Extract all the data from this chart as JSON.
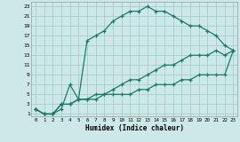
{
  "xlabel": "Humidex (Indice chaleur)",
  "background_color": "#cce8e8",
  "grid_color": "#aacccc",
  "line_color": "#1a7a6a",
  "xlim": [
    -0.5,
    23.5
  ],
  "ylim": [
    0.5,
    24
  ],
  "xticks": [
    0,
    1,
    2,
    3,
    4,
    5,
    6,
    7,
    8,
    9,
    10,
    11,
    12,
    13,
    14,
    15,
    16,
    17,
    18,
    19,
    20,
    21,
    22,
    23
  ],
  "yticks": [
    1,
    3,
    5,
    7,
    9,
    11,
    13,
    15,
    17,
    19,
    21,
    23
  ],
  "series1_x": [
    0,
    1,
    2,
    3,
    4,
    5,
    6,
    7,
    8,
    9,
    10,
    11,
    12,
    13,
    14,
    15,
    16,
    17,
    18,
    19,
    20,
    21,
    22,
    23
  ],
  "series1_y": [
    2,
    1,
    1,
    2,
    7,
    4,
    16,
    17,
    18,
    20,
    21,
    22,
    22,
    23,
    22,
    22,
    21,
    20,
    19,
    19,
    18,
    17,
    15,
    14
  ],
  "series2_x": [
    0,
    1,
    2,
    3,
    4,
    5,
    6,
    7,
    8,
    9,
    10,
    11,
    12,
    13,
    14,
    15,
    16,
    17,
    18,
    19,
    20,
    21,
    22,
    23
  ],
  "series2_y": [
    2,
    1,
    1,
    3,
    3,
    4,
    4,
    5,
    5,
    6,
    7,
    8,
    8,
    9,
    10,
    11,
    11,
    12,
    13,
    13,
    13,
    14,
    13,
    14
  ],
  "series3_x": [
    0,
    1,
    2,
    3,
    4,
    5,
    6,
    7,
    8,
    9,
    10,
    11,
    12,
    13,
    14,
    15,
    16,
    17,
    18,
    19,
    20,
    21,
    22,
    23
  ],
  "series3_y": [
    2,
    1,
    1,
    3,
    3,
    4,
    4,
    4,
    5,
    5,
    5,
    5,
    6,
    6,
    7,
    7,
    7,
    8,
    8,
    9,
    9,
    9,
    9,
    14
  ]
}
